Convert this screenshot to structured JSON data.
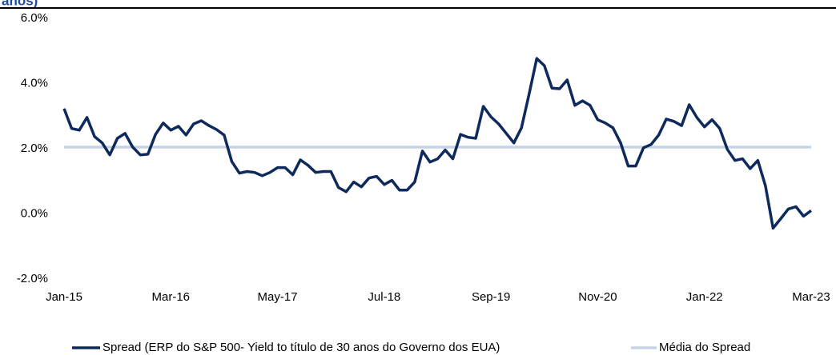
{
  "chart_data": {
    "type": "line",
    "title": "anos)",
    "categories": [
      "Jan-15",
      null,
      null,
      null,
      null,
      null,
      null,
      null,
      null,
      null,
      null,
      null,
      null,
      null,
      "Mar-16",
      null,
      null,
      null,
      null,
      null,
      null,
      null,
      null,
      null,
      null,
      null,
      null,
      null,
      "May-17",
      null,
      null,
      null,
      null,
      null,
      null,
      null,
      null,
      null,
      null,
      null,
      null,
      null,
      "Jul-18",
      null,
      null,
      null,
      null,
      null,
      null,
      null,
      null,
      null,
      null,
      null,
      null,
      null,
      "Sep-19",
      null,
      null,
      null,
      null,
      null,
      null,
      null,
      null,
      null,
      null,
      null,
      null,
      null,
      "Nov-20",
      null,
      null,
      null,
      null,
      null,
      null,
      null,
      null,
      null,
      null,
      null,
      null,
      null,
      "Jan-22",
      null,
      null,
      null,
      null,
      null,
      null,
      null,
      null,
      null,
      null,
      null,
      null,
      null,
      "Mar-23"
    ],
    "series": [
      {
        "name": "Spread (ERP do S&P 500- Yield to título de 30 anos do Governo dos EUA)",
        "color": "#0e2a5c",
        "values": [
          3.23,
          2.62,
          2.57,
          2.96,
          2.37,
          2.18,
          1.81,
          2.32,
          2.47,
          2.05,
          1.81,
          1.83,
          2.44,
          2.79,
          2.57,
          2.69,
          2.42,
          2.76,
          2.86,
          2.71,
          2.59,
          2.42,
          1.61,
          1.25,
          1.3,
          1.27,
          1.17,
          1.27,
          1.42,
          1.42,
          1.2,
          1.66,
          1.49,
          1.27,
          1.3,
          1.3,
          0.81,
          0.68,
          0.98,
          0.83,
          1.1,
          1.15,
          0.9,
          1.03,
          0.73,
          0.73,
          0.98,
          1.93,
          1.59,
          1.69,
          1.96,
          1.69,
          2.44,
          2.35,
          2.32,
          3.3,
          2.98,
          2.76,
          2.47,
          2.18,
          2.64,
          3.67,
          4.77,
          4.55,
          3.86,
          3.84,
          4.11,
          3.33,
          3.47,
          3.33,
          2.89,
          2.79,
          2.64,
          2.18,
          1.47,
          1.47,
          2.03,
          2.13,
          2.42,
          2.91,
          2.84,
          2.71,
          3.35,
          2.96,
          2.67,
          2.89,
          2.62,
          1.98,
          1.64,
          1.69,
          1.39,
          1.64,
          0.86,
          -0.44,
          -0.15,
          0.15,
          0.22,
          -0.07,
          0.1
        ]
      }
    ],
    "mean": {
      "name": "Média do Spread",
      "color": "#c5d3e6",
      "value": 2.05
    },
    "ylim": [
      -2,
      6
    ],
    "yticks": [
      {
        "value": -2,
        "label": "-2.0%"
      },
      {
        "value": 0,
        "label": "0.0%"
      },
      {
        "value": 2,
        "label": "2.0%"
      },
      {
        "value": 4,
        "label": "4.0%"
      },
      {
        "value": 6,
        "label": "6.0%"
      }
    ],
    "grid": false,
    "legend": "bottom"
  }
}
